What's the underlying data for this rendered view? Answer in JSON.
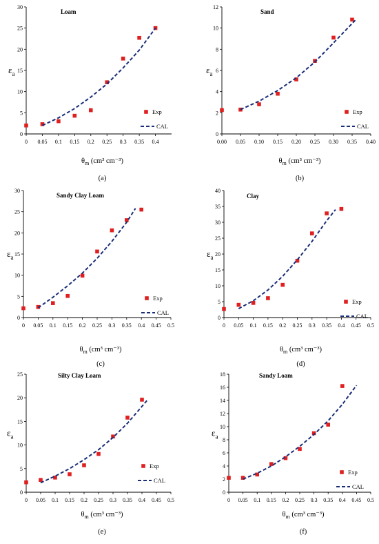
{
  "chart_data": [
    {
      "type": "scatter",
      "panel": "a",
      "title": "Loam",
      "caption": "(a)",
      "ylabel": "ε",
      "ylabel_sub": "a",
      "xlabel_main": "θ",
      "xlabel_sub": "m",
      "xlabel_units": " (cm³ cm⁻³)",
      "xlim": [
        0,
        0.45
      ],
      "ylim": [
        0,
        30
      ],
      "xticks": [
        "0",
        "0.05",
        "0.1",
        "0.15",
        "0.2",
        "0.25",
        "0.3",
        "0.35",
        "0.4"
      ],
      "xtick_values": [
        0,
        0.05,
        0.1,
        0.15,
        0.2,
        0.25,
        0.3,
        0.35,
        0.4
      ],
      "yticks": [
        "0",
        "5",
        "10",
        "15",
        "20",
        "25",
        "30"
      ],
      "ytick_values": [
        0,
        5,
        10,
        15,
        20,
        25,
        30
      ],
      "grid": false,
      "legend_position": "bottom-right",
      "series": [
        {
          "name": "Exp",
          "kind": "points",
          "color": "#e02020",
          "x": [
            0,
            0.05,
            0.1,
            0.15,
            0.2,
            0.25,
            0.3,
            0.35,
            0.4
          ],
          "y": [
            2.0,
            2.3,
            3.0,
            4.3,
            5.6,
            12.2,
            17.8,
            22.7,
            25.0
          ]
        },
        {
          "name": "CAL",
          "kind": "dashed-line",
          "color": "#1a2e78",
          "x": [
            0.05,
            0.1,
            0.15,
            0.2,
            0.25,
            0.3,
            0.35,
            0.4
          ],
          "y": [
            2.0,
            3.8,
            6.0,
            8.7,
            11.8,
            15.6,
            19.8,
            25.0
          ]
        }
      ]
    },
    {
      "type": "scatter",
      "panel": "b",
      "title": "Sand",
      "caption": "(b)",
      "ylabel": "ε",
      "ylabel_sub": "a",
      "xlabel_main": "θ",
      "xlabel_sub": "m",
      "xlabel_units": " (cm³ cm⁻³)",
      "xlim": [
        0,
        0.4
      ],
      "ylim": [
        0,
        12
      ],
      "xticks": [
        "0.00",
        "0.05",
        "0.10",
        "0.15",
        "0.20",
        "0.25",
        "0.30",
        "0.35",
        "0.40"
      ],
      "xtick_values": [
        0,
        0.05,
        0.1,
        0.15,
        0.2,
        0.25,
        0.3,
        0.35,
        0.4
      ],
      "yticks": [
        "0",
        "2",
        "4",
        "6",
        "8",
        "10",
        "12"
      ],
      "ytick_values": [
        0,
        2,
        4,
        6,
        8,
        10,
        12
      ],
      "grid": false,
      "legend_position": "bottom-right",
      "series": [
        {
          "name": "Exp",
          "kind": "points",
          "color": "#e02020",
          "x": [
            0,
            0.05,
            0.1,
            0.15,
            0.2,
            0.25,
            0.3,
            0.35
          ],
          "y": [
            2.25,
            2.3,
            2.8,
            3.8,
            5.15,
            6.9,
            9.1,
            10.8
          ]
        },
        {
          "name": "CAL",
          "kind": "dashed-line",
          "color": "#1a2e78",
          "x": [
            0.05,
            0.1,
            0.15,
            0.2,
            0.25,
            0.3,
            0.36
          ],
          "y": [
            2.3,
            3.1,
            4.1,
            5.3,
            6.8,
            8.6,
            10.8
          ]
        }
      ]
    },
    {
      "type": "scatter",
      "panel": "c",
      "title": "Sandy Clay Loam",
      "caption": "(c)",
      "ylabel": "ε",
      "ylabel_sub": "a",
      "xlabel_main": "θ",
      "xlabel_sub": "m",
      "xlabel_units": " (cm³ cm⁻³)",
      "xlim": [
        0,
        0.5
      ],
      "ylim": [
        0,
        30
      ],
      "xticks": [
        "0",
        "0.05",
        "0.1",
        "0.15",
        "0.2",
        "0.25",
        "0.3",
        "0.35",
        "0.4",
        "0.45",
        "0.5"
      ],
      "xtick_values": [
        0,
        0.05,
        0.1,
        0.15,
        0.2,
        0.25,
        0.3,
        0.35,
        0.4,
        0.45,
        0.5
      ],
      "yticks": [
        "0",
        "5",
        "10",
        "15",
        "20",
        "25",
        "30"
      ],
      "ytick_values": [
        0,
        5,
        10,
        15,
        20,
        25,
        30
      ],
      "grid": false,
      "legend_position": "bottom-right",
      "series": [
        {
          "name": "Exp",
          "kind": "points",
          "color": "#e02020",
          "x": [
            0,
            0.05,
            0.1,
            0.15,
            0.2,
            0.25,
            0.3,
            0.35,
            0.4
          ],
          "y": [
            2.2,
            2.5,
            3.4,
            5.1,
            9.9,
            15.6,
            20.6,
            23.0,
            25.5
          ]
        },
        {
          "name": "CAL",
          "kind": "dashed-line",
          "color": "#1a2e78",
          "x": [
            0.05,
            0.1,
            0.15,
            0.2,
            0.25,
            0.3,
            0.35,
            0.38
          ],
          "y": [
            2.3,
            4.8,
            7.5,
            10.5,
            14.0,
            18.0,
            22.5,
            25.8
          ]
        }
      ]
    },
    {
      "type": "scatter",
      "panel": "d",
      "title": "Clay",
      "caption": "(d)",
      "ylabel": "ε",
      "ylabel_sub": "a",
      "xlabel_main": "θ",
      "xlabel_sub": "m",
      "xlabel_units": " (cm³ cm⁻³)",
      "xlim": [
        0,
        0.5
      ],
      "ylim": [
        0,
        40
      ],
      "xticks": [
        "0",
        "0.05",
        "0.1",
        "0.15",
        "0.2",
        "0.25",
        "0.3",
        "0.35",
        "0.4",
        "0.45",
        "0.5"
      ],
      "xtick_values": [
        0,
        0.05,
        0.1,
        0.15,
        0.2,
        0.25,
        0.3,
        0.35,
        0.4,
        0.45,
        0.5
      ],
      "yticks": [
        "0",
        "5",
        "10",
        "15",
        "20",
        "25",
        "30",
        "35",
        "40"
      ],
      "ytick_values": [
        0,
        5,
        10,
        15,
        20,
        25,
        30,
        35,
        40
      ],
      "grid": false,
      "legend_position": "bottom-right",
      "series": [
        {
          "name": "Exp",
          "kind": "points",
          "color": "#e02020",
          "x": [
            0,
            0.05,
            0.1,
            0.15,
            0.2,
            0.25,
            0.3,
            0.35,
            0.4
          ],
          "y": [
            2.7,
            4.0,
            4.6,
            6.1,
            10.3,
            17.9,
            26.5,
            32.8,
            34.2
          ]
        },
        {
          "name": "CAL",
          "kind": "dashed-line",
          "color": "#1a2e78",
          "x": [
            0.05,
            0.1,
            0.15,
            0.2,
            0.25,
            0.3,
            0.35,
            0.38
          ],
          "y": [
            2.8,
            5.3,
            8.7,
            13.0,
            18.2,
            24.0,
            30.5,
            34.0
          ]
        }
      ]
    },
    {
      "type": "scatter",
      "panel": "e",
      "title": "Silty Clay Loam",
      "caption": "(e)",
      "ylabel": "ε",
      "ylabel_sub": "a",
      "xlabel_main": "θ",
      "xlabel_sub": "m",
      "xlabel_units": " (cm³ cm⁻³)",
      "xlim": [
        0,
        0.5
      ],
      "ylim": [
        0,
        25
      ],
      "xticks": [
        "0",
        "0.05",
        "0.1",
        "0.15",
        "0.2",
        "0.25",
        "0.3",
        "0.35",
        "0.4",
        "0.45",
        "0.5"
      ],
      "xtick_values": [
        0,
        0.05,
        0.1,
        0.15,
        0.2,
        0.25,
        0.3,
        0.35,
        0.4,
        0.45,
        0.5
      ],
      "yticks": [
        "0",
        "5",
        "10",
        "15",
        "20",
        "25"
      ],
      "ytick_values": [
        0,
        5,
        10,
        15,
        20,
        25
      ],
      "grid": false,
      "legend_position": "bottom-right",
      "series": [
        {
          "name": "Exp",
          "kind": "points",
          "color": "#e02020",
          "x": [
            0,
            0.05,
            0.1,
            0.15,
            0.2,
            0.25,
            0.3,
            0.35,
            0.4
          ],
          "y": [
            2.1,
            2.6,
            3.1,
            3.8,
            5.7,
            8.1,
            11.8,
            15.8,
            19.6
          ]
        },
        {
          "name": "CAL",
          "kind": "dashed-line",
          "color": "#1a2e78",
          "x": [
            0.05,
            0.1,
            0.15,
            0.2,
            0.25,
            0.3,
            0.35,
            0.42
          ],
          "y": [
            2.0,
            3.4,
            5.0,
            6.9,
            9.0,
            11.6,
            14.6,
            19.6
          ]
        }
      ]
    },
    {
      "type": "scatter",
      "panel": "f",
      "title": "Sandy Loam",
      "caption": "(f)",
      "ylabel": "ε",
      "ylabel_sub": "a",
      "xlabel_main": "θ",
      "xlabel_sub": "m",
      "xlabel_units": " (cm³ cm⁻³)",
      "xlim": [
        0,
        0.5
      ],
      "ylim": [
        0,
        18
      ],
      "xticks": [
        "0",
        "0.05",
        "0.1",
        "0.15",
        "0.2",
        "0.25",
        "0.3",
        "0.35",
        "0.4",
        "0.45",
        "0.5"
      ],
      "xtick_values": [
        0,
        0.05,
        0.1,
        0.15,
        0.2,
        0.25,
        0.3,
        0.35,
        0.4,
        0.45,
        0.5
      ],
      "yticks": [
        "0",
        "2",
        "4",
        "6",
        "8",
        "10",
        "12",
        "14",
        "16",
        "18"
      ],
      "ytick_values": [
        0,
        2,
        4,
        6,
        8,
        10,
        12,
        14,
        16,
        18
      ],
      "grid": false,
      "legend_position": "bottom-right",
      "series": [
        {
          "name": "Exp",
          "kind": "points",
          "color": "#e02020",
          "x": [
            0,
            0.05,
            0.1,
            0.15,
            0.2,
            0.25,
            0.3,
            0.35,
            0.4
          ],
          "y": [
            2.2,
            2.2,
            2.7,
            4.3,
            5.2,
            6.6,
            9.0,
            10.3,
            16.2
          ]
        },
        {
          "name": "CAL",
          "kind": "dashed-line",
          "color": "#1a2e78",
          "x": [
            0.05,
            0.1,
            0.15,
            0.2,
            0.25,
            0.3,
            0.35,
            0.4,
            0.45
          ],
          "y": [
            2.0,
            2.9,
            4.0,
            5.4,
            7.0,
            8.8,
            10.9,
            13.4,
            16.3
          ]
        }
      ]
    }
  ]
}
